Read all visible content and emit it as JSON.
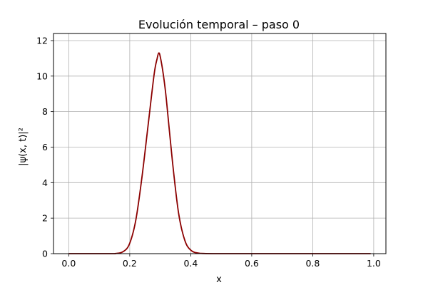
{
  "chart_data": {
    "type": "line",
    "title": "Evolución temporal – paso 0",
    "xlabel": "x",
    "ylabel": "|ψ(x, t)|²",
    "xlim": [
      -0.05,
      1.04
    ],
    "ylim": [
      0,
      12.4
    ],
    "xticks": [
      "0.0",
      "0.2",
      "0.4",
      "0.6",
      "0.8",
      "1.0"
    ],
    "yticks": [
      "0",
      "2",
      "4",
      "6",
      "8",
      "10",
      "12"
    ],
    "grid": true,
    "series": [
      {
        "color": "#8b0000",
        "x": [
          0.0,
          0.1,
          0.15,
          0.18,
          0.2,
          0.22,
          0.24,
          0.26,
          0.28,
          0.29,
          0.295,
          0.3,
          0.31,
          0.32,
          0.34,
          0.36,
          0.38,
          0.4,
          0.43,
          0.5,
          0.7,
          0.99
        ],
        "y": [
          0.0,
          0.0,
          0.0,
          0.13,
          0.59,
          1.9,
          4.3,
          7.2,
          10.1,
          11.0,
          11.3,
          11.1,
          10.1,
          8.7,
          5.2,
          2.3,
          0.78,
          0.2,
          0.02,
          0.0,
          0.0,
          0.0
        ]
      }
    ]
  }
}
